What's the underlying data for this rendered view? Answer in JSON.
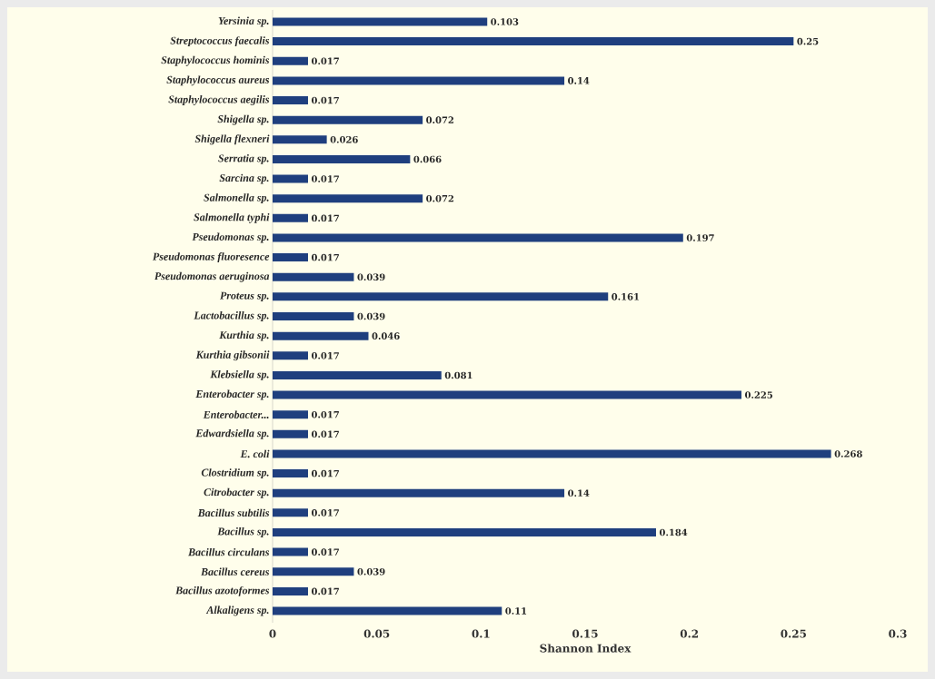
{
  "chart_data": {
    "type": "bar",
    "orientation": "horizontal",
    "xlabel": "Shannon Index",
    "categories": [
      "Yersinia sp.",
      "Streptococcus faecalis",
      "Staphylococcus hominis",
      "Staphylococcus aureus",
      "Staphylococcus aegilis",
      "Shigella sp.",
      "Shigella flexneri",
      "Serratia sp.",
      "Sarcina sp.",
      "Salmonella sp.",
      "Salmonella typhi",
      "Pseudomonas sp.",
      "Pseudomonas fluoresence",
      "Pseudomonas aeruginosa",
      "Proteus sp.",
      "Lactobacillus sp.",
      "Kurthia sp.",
      "Kurthia gibsonii",
      "Klebsiella sp.",
      "Enterobacter sp.",
      "Enterobacter...",
      "Edwardsiella sp.",
      "E. coli",
      "Clostridium sp.",
      "Citrobacter sp.",
      "Bacillus subtilis",
      "Bacillus sp.",
      "Bacillus circulans",
      "Bacillus cereus",
      "Bacillus azotoformes",
      "Alkaligens sp."
    ],
    "values": [
      0.103,
      0.25,
      0.017,
      0.14,
      0.017,
      0.072,
      0.026,
      0.066,
      0.017,
      0.072,
      0.017,
      0.197,
      0.017,
      0.039,
      0.161,
      0.039,
      0.046,
      0.017,
      0.081,
      0.225,
      0.017,
      0.017,
      0.268,
      0.017,
      0.14,
      0.017,
      0.184,
      0.017,
      0.039,
      0.017,
      0.11
    ],
    "color": "#1f3f7e",
    "data_labels": true,
    "xlim": [
      0,
      0.3
    ],
    "xticks": [
      0,
      0.05,
      0.1,
      0.15,
      0.2,
      0.25,
      0.3
    ]
  }
}
